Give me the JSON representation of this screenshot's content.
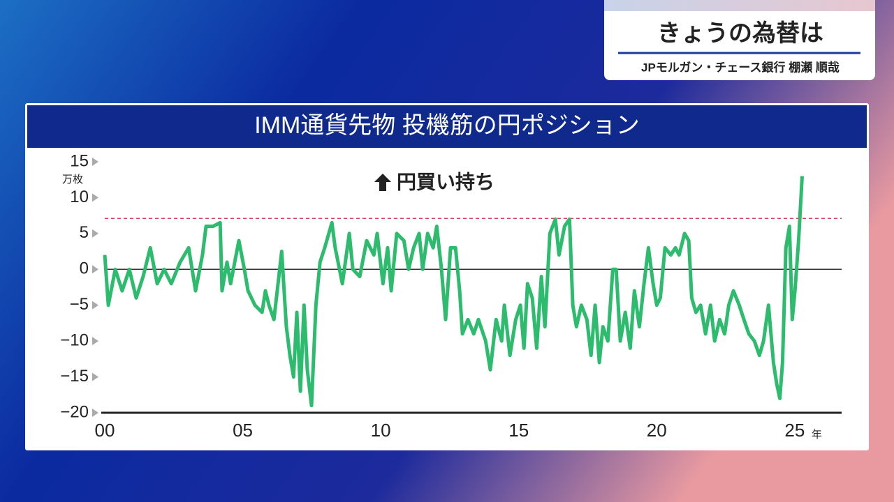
{
  "header": {
    "title": "きょうの為替は",
    "subtitle": "JPモルガン・チェース銀行 棚瀬 順哉"
  },
  "chart_data": {
    "type": "line",
    "title": "IMM通貨先物 投機筋の円ポジション",
    "y_unit": "万枚",
    "x_unit": "年",
    "annotation": "円買い持ち",
    "xlim": [
      2000,
      2026.7
    ],
    "ylim": [
      -20,
      15
    ],
    "xticks": [
      {
        "value": 2000,
        "label": "00"
      },
      {
        "value": 2005,
        "label": "05"
      },
      {
        "value": 2010,
        "label": "10"
      },
      {
        "value": 2015,
        "label": "15"
      },
      {
        "value": 2020,
        "label": "20"
      },
      {
        "value": 2025,
        "label": "25"
      }
    ],
    "yticks": [
      15,
      10,
      5,
      0,
      {
        "value": -5,
        "label": "−5"
      },
      {
        "value": -10,
        "label": "−10"
      },
      {
        "value": -15,
        "label": "−15"
      },
      {
        "value": -20,
        "label": "−20"
      }
    ],
    "reference_lines": [
      {
        "value": 0,
        "color": "#333333",
        "style": "solid"
      },
      {
        "value": 7.1,
        "color": "#e0405a",
        "style": "dashed"
      }
    ],
    "x": [
      2000.0,
      2000.13,
      2000.38,
      2000.63,
      2000.89,
      2001.14,
      2001.39,
      2001.65,
      2001.9,
      2002.15,
      2002.41,
      2002.73,
      2003.04,
      2003.29,
      2003.54,
      2003.67,
      2003.92,
      2004.18,
      2004.25,
      2004.43,
      2004.56,
      2004.86,
      2005.06,
      2005.19,
      2005.44,
      2005.7,
      2005.82,
      2005.95,
      2006.13,
      2006.28,
      2006.41,
      2006.58,
      2006.71,
      2006.84,
      2006.96,
      2007.09,
      2007.22,
      2007.34,
      2007.49,
      2007.65,
      2007.8,
      2007.97,
      2008.23,
      2008.35,
      2008.61,
      2008.86,
      2008.99,
      2009.24,
      2009.49,
      2009.75,
      2009.87,
      2010.08,
      2010.25,
      2010.38,
      2010.58,
      2010.84,
      2011.01,
      2011.19,
      2011.39,
      2011.52,
      2011.7,
      2011.9,
      2012.03,
      2012.2,
      2012.35,
      2012.53,
      2012.71,
      2012.86,
      2012.96,
      2013.16,
      2013.37,
      2013.54,
      2013.8,
      2013.97,
      2014.18,
      2014.38,
      2014.48,
      2014.68,
      2014.89,
      2015.06,
      2015.19,
      2015.32,
      2015.49,
      2015.65,
      2015.82,
      2015.95,
      2016.13,
      2016.33,
      2016.46,
      2016.66,
      2016.84,
      2016.96,
      2017.09,
      2017.27,
      2017.47,
      2017.62,
      2017.77,
      2017.92,
      2018.05,
      2018.23,
      2018.41,
      2018.53,
      2018.68,
      2018.86,
      2019.04,
      2019.19,
      2019.37,
      2019.54,
      2019.7,
      2019.87,
      2020.0,
      2020.13,
      2020.3,
      2020.51,
      2020.68,
      2020.81,
      2021.01,
      2021.16,
      2021.27,
      2021.42,
      2021.59,
      2021.77,
      2021.95,
      2022.1,
      2022.28,
      2022.46,
      2022.61,
      2022.78,
      2022.99,
      2023.16,
      2023.34,
      2023.54,
      2023.72,
      2023.87,
      2024.05,
      2024.23,
      2024.35,
      2024.46,
      2024.56,
      2024.68,
      2024.81,
      2024.91,
      2025.01,
      2025.14,
      2025.27
    ],
    "series": [
      {
        "color": "#2dbb6e",
        "values": [
          2,
          -5,
          0,
          -3,
          0,
          -4,
          -1,
          3,
          -2,
          0,
          -2,
          1,
          3,
          -3,
          2,
          6,
          6,
          6.5,
          -3,
          1,
          -2,
          4,
          0,
          -3,
          -5,
          -6,
          -3,
          -5,
          -7,
          -2,
          2.5,
          -8,
          -12,
          -15,
          -6,
          -17,
          -5,
          -14,
          -19,
          -5,
          1,
          3,
          6.5,
          3,
          -2,
          5,
          0,
          -1,
          4,
          2,
          5,
          -2,
          3,
          -3,
          5,
          4,
          0,
          3,
          5,
          0,
          5,
          3,
          6,
          0,
          -7,
          3,
          3,
          -3,
          -9,
          -7,
          -9,
          -7,
          -10,
          -14,
          -7,
          -10,
          -5,
          -12,
          -7,
          -5,
          -11,
          -2,
          -4,
          -11,
          -1,
          -8,
          5,
          7,
          2,
          6,
          7,
          -5,
          -8,
          -5,
          -7,
          -12,
          -5,
          -13,
          -8,
          -10,
          0,
          0,
          -10,
          -6,
          -11,
          -3,
          -8,
          -2,
          3,
          -2,
          -5,
          -4,
          3,
          2,
          3,
          2,
          5,
          4,
          -4,
          -6,
          -5,
          -9,
          -5,
          -10,
          -7,
          -9,
          -5,
          -3,
          -5,
          -7,
          -9,
          -10,
          -12,
          -10,
          -5,
          -13,
          -16,
          -18,
          -13,
          3,
          6,
          -7,
          -3,
          4,
          13
        ]
      }
    ]
  }
}
